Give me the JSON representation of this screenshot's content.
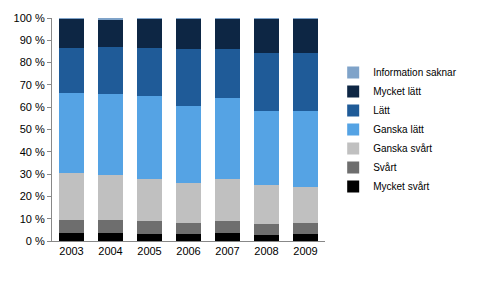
{
  "chart_data": {
    "type": "bar",
    "stacked": true,
    "categories": [
      "2003",
      "2004",
      "2005",
      "2006",
      "2007",
      "2008",
      "2009"
    ],
    "series": [
      {
        "name": "Mycket svårt",
        "color": "#000000",
        "values": [
          3.5,
          3.5,
          3,
          3,
          3.5,
          2.5,
          3
        ]
      },
      {
        "name": "Svårt",
        "color": "#6e6e6e",
        "values": [
          6,
          6,
          6,
          5,
          5.5,
          5,
          5
        ]
      },
      {
        "name": "Ganska svårt",
        "color": "#c0c0c0",
        "values": [
          21,
          20,
          19,
          18,
          19,
          17.5,
          16
        ]
      },
      {
        "name": "Ganska lätt",
        "color": "#55a3e4",
        "values": [
          36,
          36.5,
          37,
          34.5,
          36,
          33.5,
          34.5
        ]
      },
      {
        "name": "Lätt",
        "color": "#1f5b98",
        "values": [
          20,
          21,
          21.5,
          25.5,
          22,
          26,
          26
        ]
      },
      {
        "name": "Mycket lätt",
        "color": "#0d2644",
        "values": [
          13,
          12,
          13,
          13.5,
          13.5,
          15,
          15
        ]
      },
      {
        "name": "Information saknar",
        "color": "#7fa3c9",
        "values": [
          0.5,
          1,
          0.5,
          0.5,
          0.5,
          0.5,
          0.5
        ]
      }
    ],
    "ylim": [
      0,
      100
    ],
    "yticks": [
      {
        "value": 0,
        "label": "0 %"
      },
      {
        "value": 10,
        "label": "10 %"
      },
      {
        "value": 20,
        "label": "20 %"
      },
      {
        "value": 30,
        "label": "30 %"
      },
      {
        "value": 40,
        "label": "40 %"
      },
      {
        "value": 50,
        "label": "50 %"
      },
      {
        "value": 60,
        "label": "60 %"
      },
      {
        "value": 70,
        "label": "70 %"
      },
      {
        "value": 80,
        "label": "80 %"
      },
      {
        "value": 90,
        "label": "90 %"
      },
      {
        "value": 100,
        "label": "100 %"
      }
    ],
    "grid": false,
    "legend": "right"
  }
}
